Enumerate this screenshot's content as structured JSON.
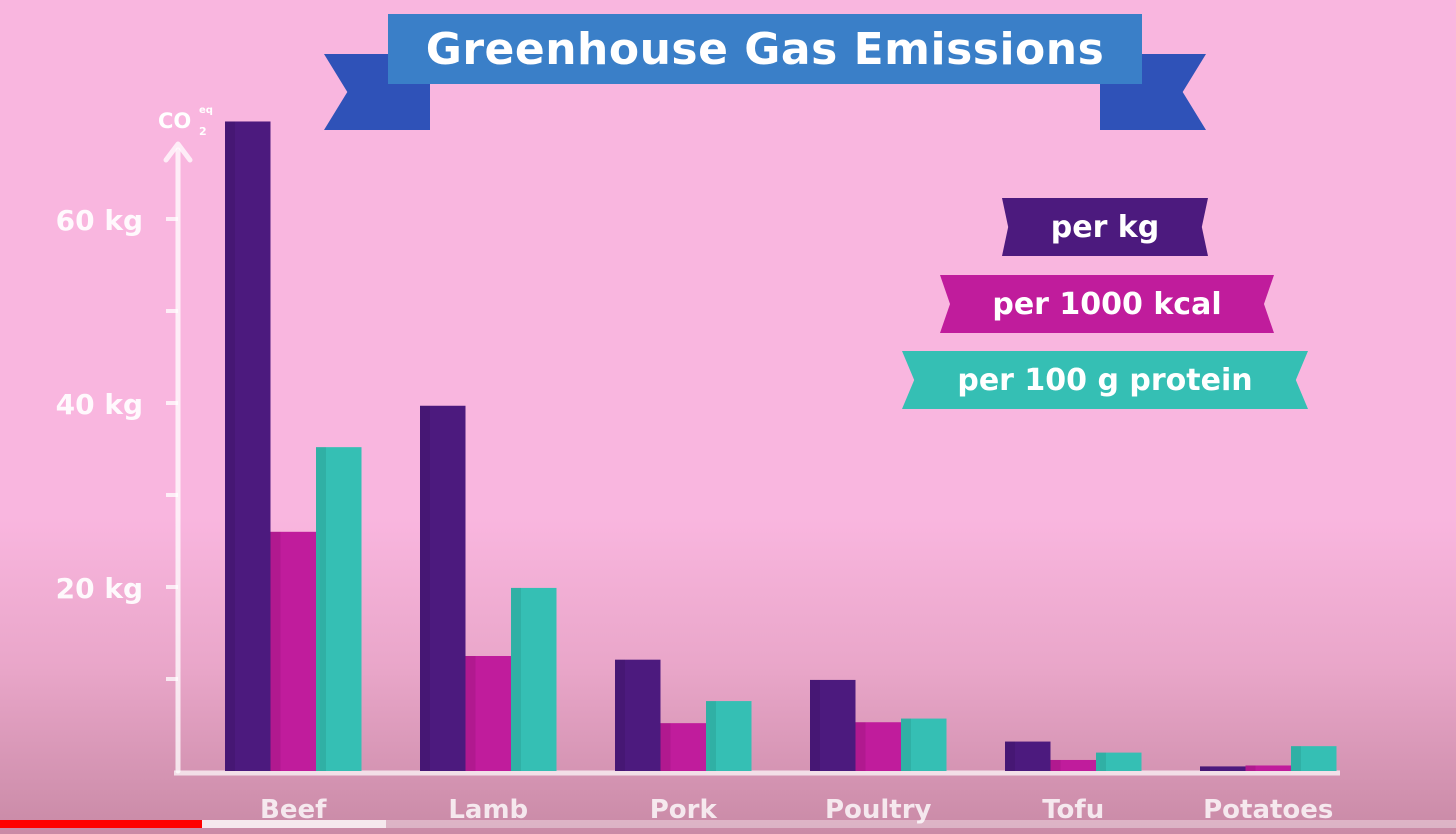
{
  "chart_data": {
    "type": "bar",
    "title": "Greenhouse Gas Emissions",
    "ylabel": "CO",
    "ylabel_sub": "2",
    "ylabel_sup": "eq",
    "ylim": [
      0,
      70
    ],
    "yticks": [
      {
        "value": 20,
        "label": "20 kg"
      },
      {
        "value": 40,
        "label": "40 kg"
      },
      {
        "value": 60,
        "label": "60 kg"
      }
    ],
    "categories": [
      "Beef",
      "Lamb",
      "Pork",
      "Poultry",
      "Tofu",
      "Potatoes"
    ],
    "series": [
      {
        "name": "per kg",
        "color": "#4c1a7e",
        "values": [
          70.6,
          39.7,
          12.1,
          9.9,
          3.2,
          0.5
        ]
      },
      {
        "name": "per 1000 kcal",
        "color": "#c01c9c",
        "values": [
          26.0,
          12.5,
          5.2,
          5.3,
          1.2,
          0.6
        ]
      },
      {
        "name": "per 100 g protein",
        "color": "#35bfb4",
        "values": [
          35.2,
          19.9,
          7.6,
          5.7,
          2.0,
          2.7
        ]
      }
    ],
    "legend_position": "top-right",
    "grid": false
  },
  "video": {
    "progress": 0.139,
    "buffered": 0.265
  }
}
